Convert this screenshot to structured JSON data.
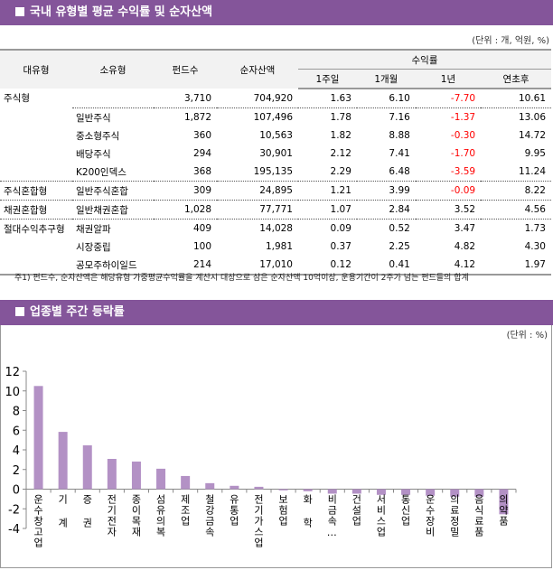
{
  "section1": {
    "title": "국내 유형별 평균 수익률 및 순자산액",
    "unit": "(단위 : 개, 억원, %)",
    "headers": {
      "major": "대유형",
      "minor": "소유형",
      "funds": "펀드수",
      "assets": "순자산액",
      "returns": "수익률",
      "w1": "1주일",
      "m1": "1개월",
      "y1": "1년",
      "ytd": "연초후"
    },
    "rows": [
      {
        "major": "주식형",
        "minor": "",
        "funds": "3,710",
        "assets": "704,920",
        "w1": "1.63",
        "m1": "6.10",
        "y1": "-7.70",
        "ytd": "10.61"
      },
      {
        "major": "",
        "minor": "일반주식",
        "funds": "1,872",
        "assets": "107,496",
        "w1": "1.78",
        "m1": "7.16",
        "y1": "-1.37",
        "ytd": "13.06"
      },
      {
        "major": "",
        "minor": "중소형주식",
        "funds": "360",
        "assets": "10,563",
        "w1": "1.82",
        "m1": "8.88",
        "y1": "-0.30",
        "ytd": "14.72"
      },
      {
        "major": "",
        "minor": "배당주식",
        "funds": "294",
        "assets": "30,901",
        "w1": "2.12",
        "m1": "7.41",
        "y1": "-1.70",
        "ytd": "9.95"
      },
      {
        "major": "",
        "minor": "K200인덱스",
        "funds": "368",
        "assets": "195,135",
        "w1": "2.29",
        "m1": "6.48",
        "y1": "-3.59",
        "ytd": "11.24"
      },
      {
        "major": "주식혼합형",
        "minor": "일반주식혼합",
        "funds": "309",
        "assets": "24,895",
        "w1": "1.21",
        "m1": "3.99",
        "y1": "-0.09",
        "ytd": "8.22"
      },
      {
        "major": "채권혼합형",
        "minor": "일반채권혼합",
        "funds": "1,028",
        "assets": "77,771",
        "w1": "1.07",
        "m1": "2.84",
        "y1": "3.52",
        "ytd": "4.56"
      },
      {
        "major": "절대수익추구형",
        "minor": "채권알파",
        "funds": "409",
        "assets": "14,028",
        "w1": "0.09",
        "m1": "0.52",
        "y1": "3.47",
        "ytd": "1.73"
      },
      {
        "major": "",
        "minor": "시장중립",
        "funds": "100",
        "assets": "1,981",
        "w1": "0.37",
        "m1": "2.25",
        "y1": "4.82",
        "ytd": "4.30"
      },
      {
        "major": "",
        "minor": "공모주하이일드",
        "funds": "214",
        "assets": "17,010",
        "w1": "0.12",
        "m1": "0.41",
        "y1": "4.12",
        "ytd": "1.97"
      }
    ],
    "note": "주1) 펀드수, 순자산액은 해당유형 가중평균수익률을 계산시 대상으로 삼은 순자산액 10억이상, 운용기간이 2주가 넘는 펀드들의 합계"
  },
  "section2": {
    "title": "업종별 주간 등락률",
    "unit": "(단위 : %)"
  },
  "colors": {
    "header": "#84559a",
    "bar": "#b391c5",
    "negative": "#ff0000"
  },
  "chart_data": {
    "type": "bar",
    "categories": [
      "운수창고업",
      "기 계",
      "증 권",
      "전기전자",
      "종이목재",
      "섬유의복",
      "제조업",
      "철강금속",
      "유통업",
      "전기가스업",
      "보험업",
      "화 학",
      "비금속…",
      "건설업",
      "서비스업",
      "통신업",
      "운수장비",
      "의료정밀",
      "음식료품",
      "의약품"
    ],
    "values": [
      10.5,
      5.83,
      4.46,
      3.08,
      2.81,
      2.08,
      1.34,
      0.61,
      0.34,
      0.24,
      -0.12,
      -0.21,
      -0.46,
      -0.46,
      -0.58,
      -0.58,
      -0.67,
      -0.76,
      -0.76,
      -2.56
    ],
    "yticks": [
      "12",
      "10",
      "8",
      "6",
      "4",
      "2",
      "0",
      "-2",
      "-4"
    ],
    "ylim": [
      -4,
      12
    ],
    "grid": false
  }
}
